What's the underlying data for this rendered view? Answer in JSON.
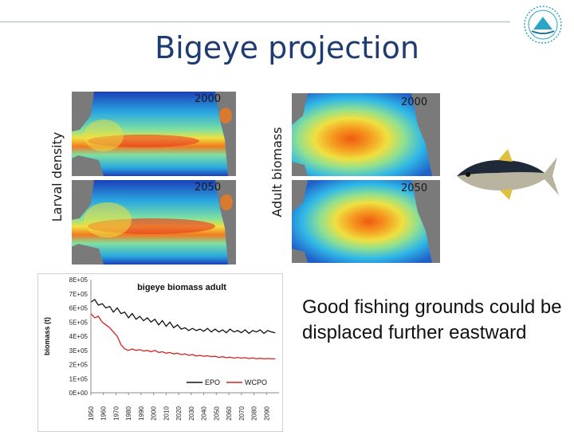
{
  "slide": {
    "title": "Bigeye projection",
    "larval_label": "Larval density",
    "adult_label": "Adult biomass",
    "year_labels": [
      "2000",
      "2050",
      "2000",
      "2050"
    ],
    "body_text": "Good fishing grounds could be displaced further eastward"
  },
  "chart_data": {
    "type": "line",
    "title": "bigeye biomass adult",
    "ylabel": "biomass (t)",
    "xlabel": "",
    "x_ticks": [
      "1950",
      "1960",
      "1970",
      "1980",
      "1990",
      "2000",
      "2010",
      "2020",
      "2030",
      "2040",
      "2050",
      "2060",
      "2070",
      "2080",
      "2090"
    ],
    "y_ticks": [
      "0E+00",
      "1E+05",
      "2E+05",
      "3E+05",
      "4E+05",
      "5E+05",
      "6E+05",
      "7E+05",
      "8E+05"
    ],
    "ylim": [
      0,
      800000
    ],
    "xlim": [
      1950,
      2100
    ],
    "grid": false,
    "legend_position": "bottom",
    "series": [
      {
        "name": "EPO",
        "color": "#111111",
        "x": [
          1950,
          1953,
          1956,
          1959,
          1962,
          1965,
          1968,
          1971,
          1974,
          1977,
          1980,
          1983,
          1986,
          1989,
          1992,
          1995,
          1998,
          2001,
          2004,
          2007,
          2010,
          2013,
          2016,
          2019,
          2022,
          2025,
          2028,
          2031,
          2034,
          2037,
          2040,
          2043,
          2046,
          2049,
          2052,
          2055,
          2058,
          2061,
          2064,
          2067,
          2070,
          2073,
          2076,
          2079,
          2082,
          2085,
          2088,
          2091,
          2094,
          2097
        ],
        "values": [
          640000,
          660000,
          620000,
          630000,
          600000,
          610000,
          570000,
          600000,
          560000,
          570000,
          530000,
          560000,
          520000,
          540000,
          510000,
          530000,
          500000,
          520000,
          480000,
          510000,
          470000,
          500000,
          460000,
          480000,
          450000,
          460000,
          440000,
          455000,
          440000,
          450000,
          435000,
          455000,
          430000,
          450000,
          430000,
          445000,
          425000,
          450000,
          430000,
          440000,
          425000,
          445000,
          420000,
          440000,
          430000,
          445000,
          420000,
          440000,
          430000,
          425000
        ]
      },
      {
        "name": "WCPO",
        "color": "#d42020",
        "x": [
          1950,
          1953,
          1956,
          1959,
          1962,
          1965,
          1968,
          1971,
          1974,
          1977,
          1980,
          1983,
          1986,
          1989,
          1992,
          1995,
          1998,
          2001,
          2004,
          2007,
          2010,
          2013,
          2016,
          2019,
          2022,
          2025,
          2028,
          2031,
          2034,
          2037,
          2040,
          2043,
          2046,
          2049,
          2052,
          2055,
          2058,
          2061,
          2064,
          2067,
          2070,
          2073,
          2076,
          2079,
          2082,
          2085,
          2088,
          2091,
          2094,
          2097
        ],
        "values": [
          560000,
          530000,
          540000,
          500000,
          480000,
          460000,
          430000,
          400000,
          340000,
          310000,
          300000,
          310000,
          300000,
          305000,
          295000,
          300000,
          290000,
          300000,
          285000,
          290000,
          280000,
          285000,
          275000,
          280000,
          270000,
          275000,
          265000,
          270000,
          260000,
          265000,
          258000,
          262000,
          255000,
          258000,
          250000,
          255000,
          248000,
          252000,
          245000,
          250000,
          245000,
          248000,
          242000,
          246000,
          240000,
          244000,
          240000,
          242000,
          240000,
          240000
        ]
      }
    ]
  }
}
